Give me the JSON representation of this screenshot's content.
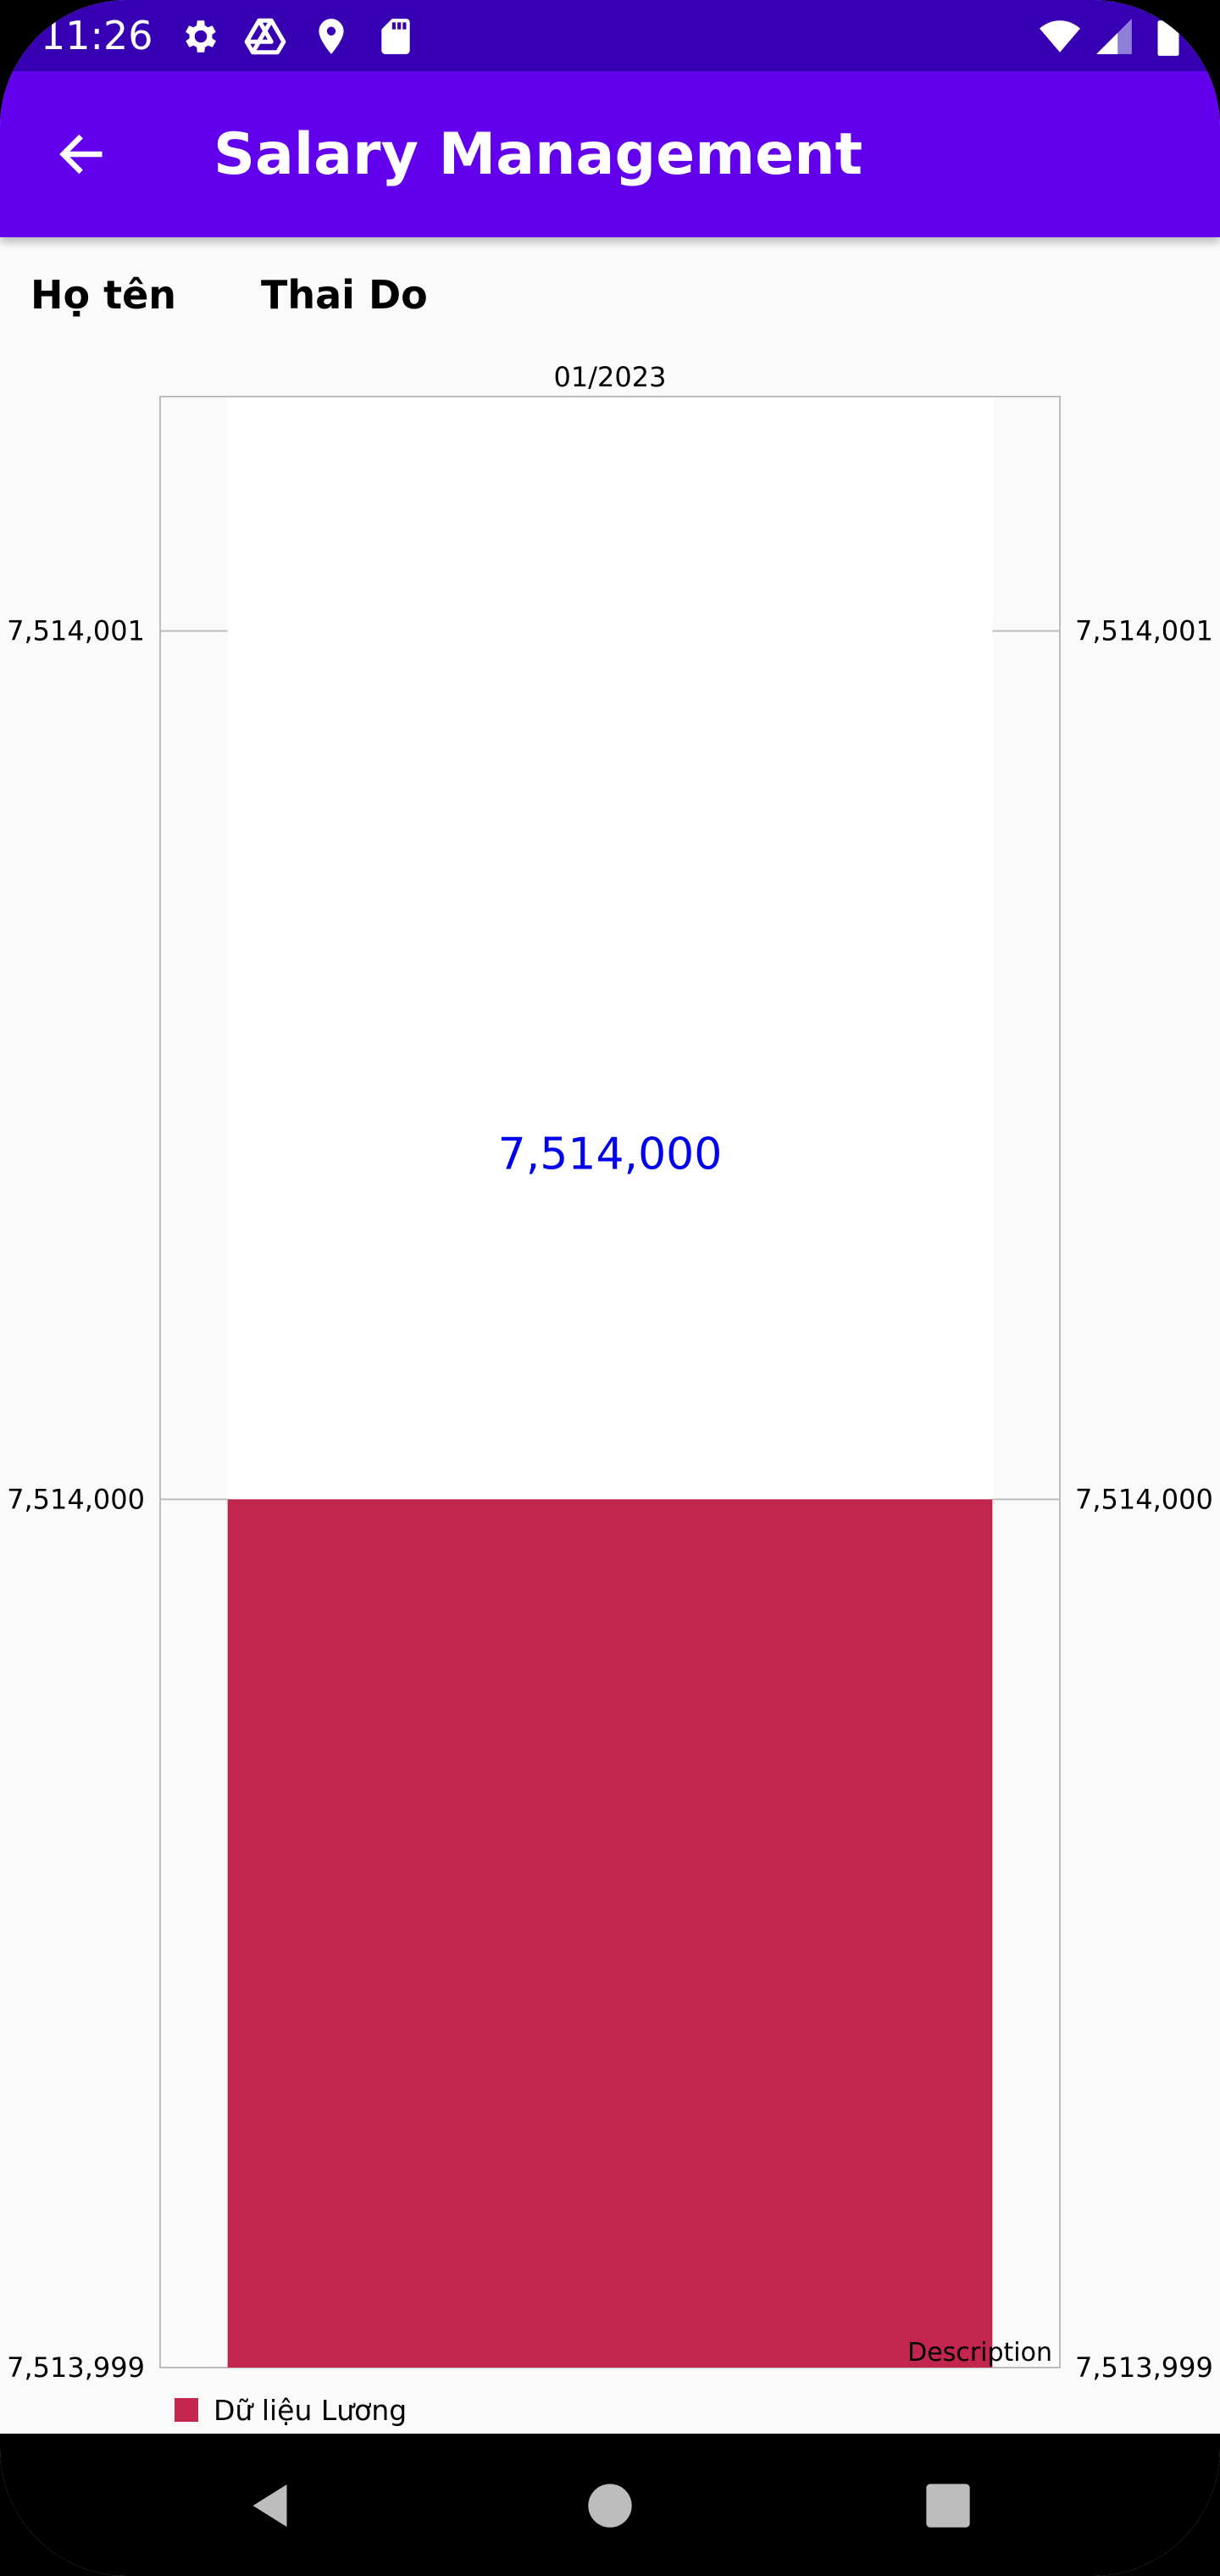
{
  "status_bar": {
    "time": "11:26",
    "left_icons": [
      "gear-icon",
      "drive-icon",
      "location-icon",
      "sd-card-icon"
    ],
    "right_icons": [
      "wifi-icon",
      "signal-icon",
      "battery-icon"
    ]
  },
  "app_bar": {
    "title": "Salary Management",
    "background": "#6200ee"
  },
  "employee": {
    "label": "Họ tên",
    "value": "Thai Do"
  },
  "chart_data": {
    "type": "bar",
    "categories": [
      "01/2023"
    ],
    "series": [
      {
        "name": "Dữ liệu Lương",
        "values": [
          7514000
        ],
        "color": "#c2264f"
      }
    ],
    "data_labels": [
      "7,514,000"
    ],
    "title": "",
    "xlabel": "",
    "ylabel": "",
    "ylim": [
      7513999,
      7514001.27
    ],
    "y_ticks": [
      7513999,
      7514000,
      7514001
    ],
    "y_tick_labels": [
      "7,513,999",
      "7,514,000",
      "7,514,001"
    ],
    "description": "Description",
    "legend_position": "bottom-left",
    "axis_right": true,
    "grid": true
  }
}
